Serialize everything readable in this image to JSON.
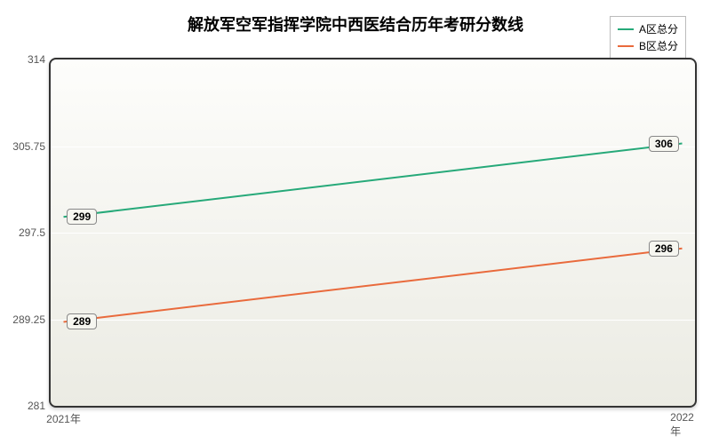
{
  "chart": {
    "type": "line",
    "title": "解放军空军指挥学院中西医结合历年考研分数线",
    "title_fontsize": 18,
    "background_top": "#fdfdfb",
    "background_bottom": "#ebebe3",
    "border_color": "#333333",
    "grid_color": "#ffffff",
    "ylim": [
      281,
      314
    ],
    "yticks": [
      281,
      289.25,
      297.5,
      305.75,
      314
    ],
    "ytick_labels": [
      "281",
      "289.25",
      "297.5",
      "305.75",
      "314"
    ],
    "x_categories": [
      "2021年",
      "2022年"
    ],
    "series": [
      {
        "name": "A区总分",
        "color": "#26a979",
        "values": [
          299,
          306
        ],
        "line_width": 2
      },
      {
        "name": "B区总分",
        "color": "#e96a3c",
        "values": [
          289,
          296
        ],
        "line_width": 2
      }
    ],
    "legend": {
      "position": "top-right",
      "border_color": "#bbbbbb",
      "fontsize": 12
    },
    "data_label_bg": "#f6f6f0",
    "data_label_border": "#888888",
    "tick_color": "#555555",
    "tick_fontsize": 12
  }
}
